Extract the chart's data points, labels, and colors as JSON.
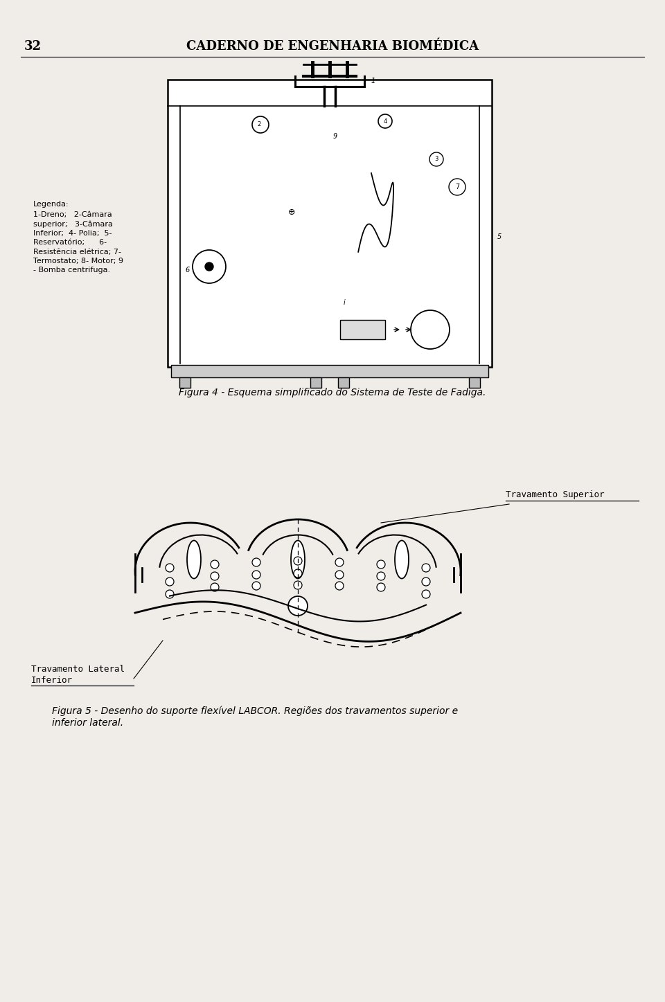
{
  "page_number": "32",
  "header_title": "CADERNO DE ENGENHARIA BIOMÉDICA",
  "background_color": "#f0ede8",
  "figure1_caption": "Figura 4 - Esquema simplificado do Sistema de Teste de Fadiga.",
  "figure1_legend_title": "Legenda:",
  "figure1_legend_text": "1-Dreno;   2-Câmara\nsuperior;   3-Câmara\nInferior;  4- Polia;  5-\nReservatório;      6-\nResistência elétrica; 7-\nTermostato; 8- Motor; 9\n- Bomba centrifuga.",
  "figure2_caption": "Figura 5 - Desenho do suporte flexível LABCOR. Regiões dos travamentos superior e\ninferior lateral.",
  "label_superior": "Travamento Superior",
  "label_inferior": "Travamento Lateral\nInferior"
}
